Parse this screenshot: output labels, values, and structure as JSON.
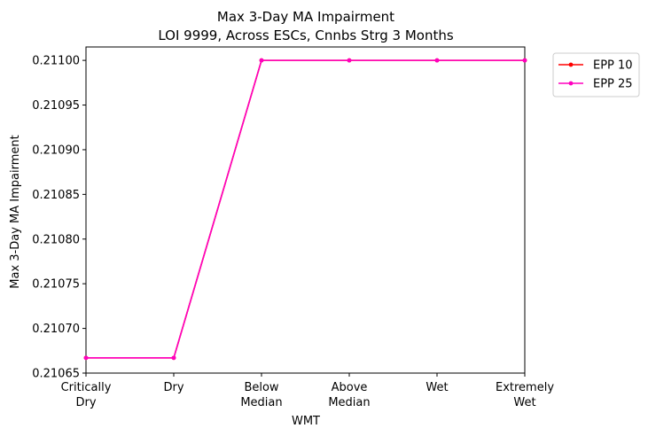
{
  "chart_data": {
    "type": "line",
    "title": "Max 3-Day MA Impairment",
    "subtitle": "LOI 9999, Across ESCs, Cnnbs Strg 3 Months",
    "xlabel": "WMT",
    "ylabel": "Max 3-Day MA Impairment",
    "categories": [
      [
        "Critically",
        "Dry"
      ],
      [
        "Dry"
      ],
      [
        "Below",
        "Median"
      ],
      [
        "Above",
        "Median"
      ],
      [
        "Wet"
      ],
      [
        "Extremely",
        "Wet"
      ]
    ],
    "ylim": [
      0.21065,
      0.211015
    ],
    "yticks": [
      0.21065,
      0.2107,
      0.21075,
      0.2108,
      0.21085,
      0.2109,
      0.21095,
      0.211
    ],
    "ytick_labels": [
      "0.21065",
      "0.21070",
      "0.21075",
      "0.21080",
      "0.21085",
      "0.21090",
      "0.21095",
      "0.21100"
    ],
    "grid": false,
    "legend": "outside-top-right",
    "series": [
      {
        "name": "EPP 10",
        "color": "#ff0000",
        "marker": "circle",
        "values": [
          0.210667,
          0.210667,
          0.211,
          0.211,
          0.211,
          0.211
        ]
      },
      {
        "name": "EPP 25",
        "color": "#ff00bf",
        "marker": "circle",
        "values": [
          0.210667,
          0.210667,
          0.211,
          0.211,
          0.211,
          0.211
        ]
      }
    ]
  }
}
